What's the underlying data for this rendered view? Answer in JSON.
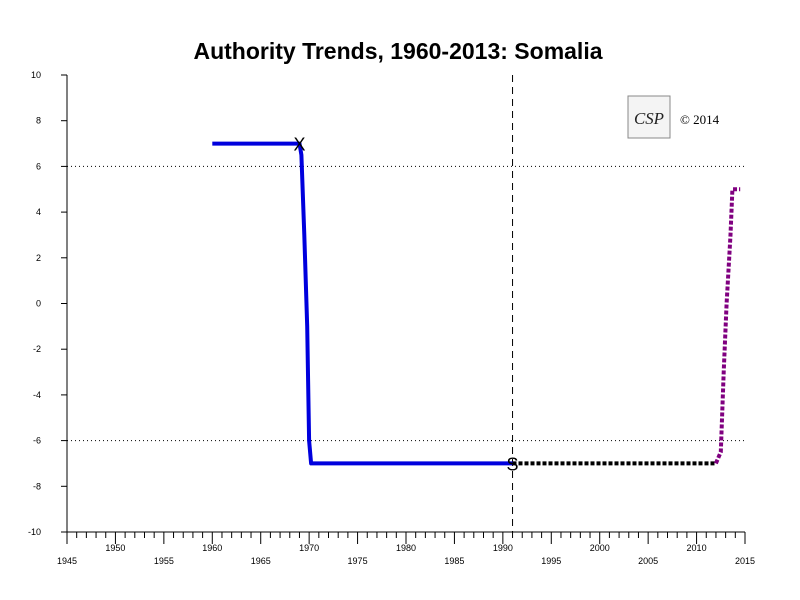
{
  "chart_data": {
    "type": "line",
    "title": "Authority Trends, 1960-2013: Somalia",
    "xlabel": "",
    "ylabel": "",
    "xlim": [
      1945,
      2015
    ],
    "ylim": [
      -10,
      10
    ],
    "x_tick_labels_upper": [
      "1950",
      "1960",
      "1970",
      "1980",
      "1990",
      "2000",
      "2010"
    ],
    "x_tick_labels_lower": [
      "1945",
      "1955",
      "1965",
      "1975",
      "1985",
      "1995",
      "2005",
      "2015"
    ],
    "y_ticks": [
      10,
      8,
      6,
      4,
      2,
      0,
      -2,
      -4,
      -6,
      -8,
      -10
    ],
    "y_tick_labels": [
      "10",
      "8",
      "6",
      "4",
      "2",
      "0",
      "-2",
      "-4",
      "-6",
      "-8",
      "-10"
    ],
    "reference_lines_y": [
      6,
      -6
    ],
    "reference_line_x": 1991,
    "series": [
      {
        "style": "solid",
        "color": "#0000dd",
        "points": [
          [
            1960,
            7
          ],
          [
            1969,
            7
          ],
          [
            1969.2,
            6.5
          ],
          [
            1969.5,
            3
          ],
          [
            1969.8,
            -1
          ],
          [
            1970,
            -6
          ],
          [
            1970.2,
            -7
          ],
          [
            1991,
            -7
          ]
        ]
      },
      {
        "style": "dotted",
        "color": "#000000",
        "points": [
          [
            1991,
            -7
          ],
          [
            2012,
            -7
          ]
        ]
      },
      {
        "style": "dotted",
        "color": "#800080",
        "points": [
          [
            2012,
            -7
          ],
          [
            2012.5,
            -6.5
          ],
          [
            2012.8,
            -3
          ],
          [
            2013.1,
            0
          ],
          [
            2013.5,
            3
          ],
          [
            2013.7,
            5
          ],
          [
            2014.5,
            5
          ]
        ]
      }
    ],
    "markers": [
      {
        "label": "X",
        "x": 1969,
        "y": 7
      },
      {
        "label": "S",
        "x": 1991,
        "y": -7
      }
    ],
    "logo": {
      "text": "CSP"
    },
    "copyright": "© 2014"
  }
}
